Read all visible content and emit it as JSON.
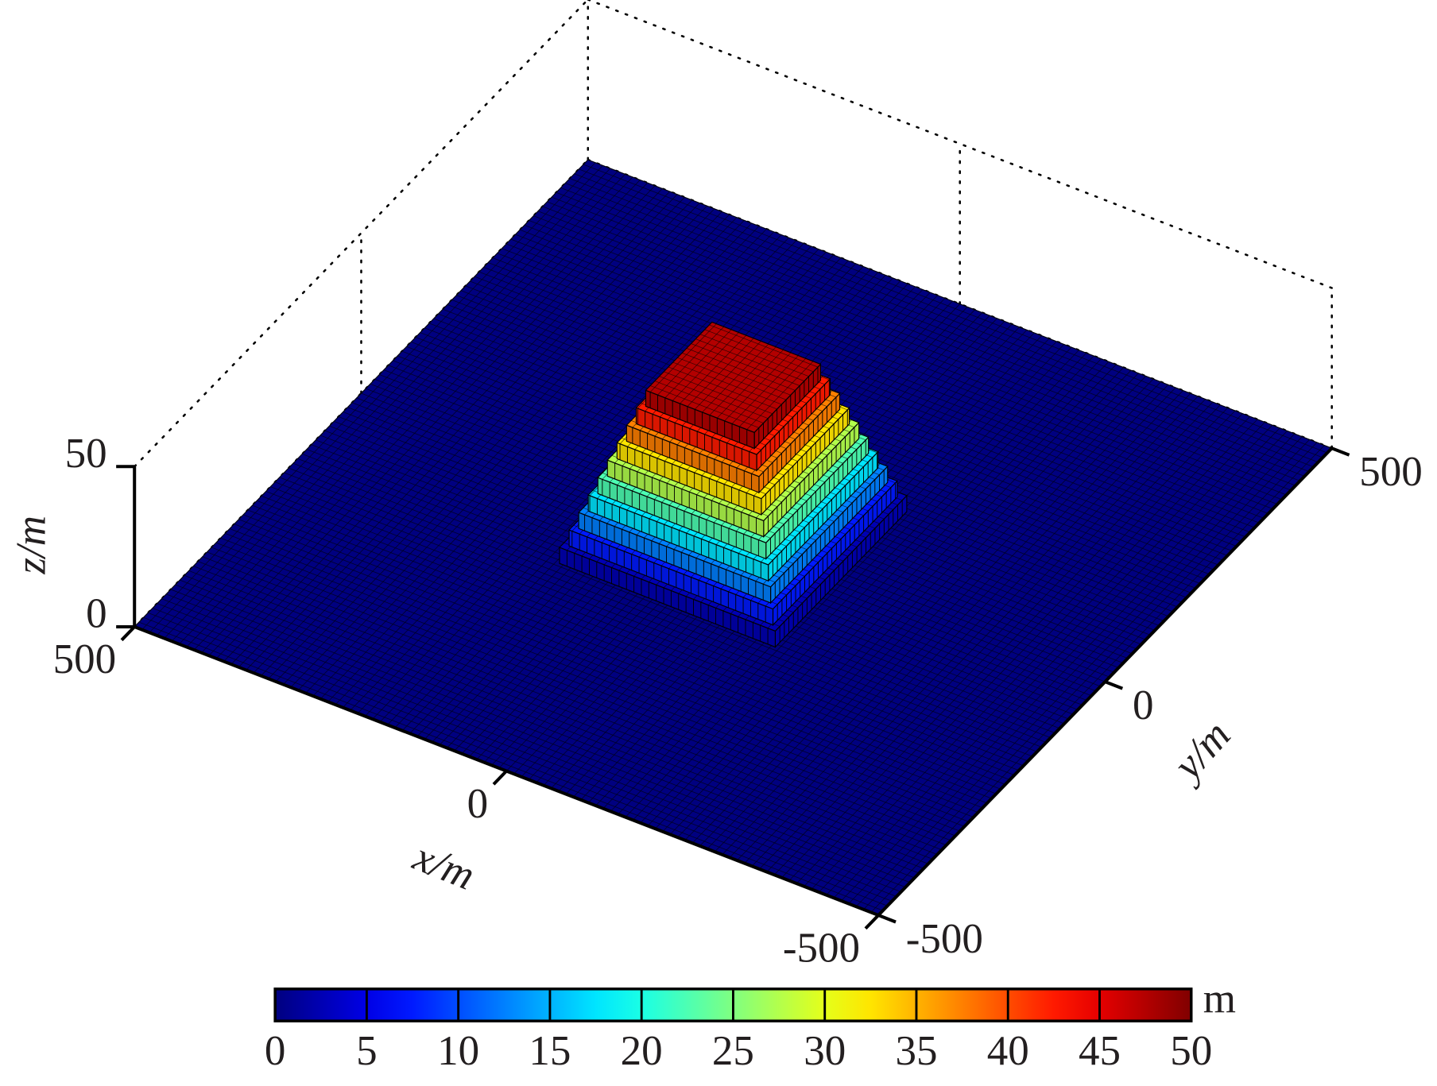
{
  "chart_data": {
    "type": "surface3d",
    "xlabel": "x/m",
    "ylabel": "y/m",
    "zlabel": "z/m",
    "xlim": [
      -500,
      500
    ],
    "ylim": [
      -500,
      500
    ],
    "zlim": [
      0,
      50
    ],
    "xticks": [
      -500,
      0,
      500
    ],
    "yticks": [
      -500,
      0,
      500
    ],
    "zticks": [
      0,
      50
    ],
    "grid": true,
    "colormap": "jet",
    "surface": {
      "levels": [
        {
          "z": 5,
          "half_width": 145
        },
        {
          "z": 10,
          "half_width": 137
        },
        {
          "z": 15,
          "half_width": 129
        },
        {
          "z": 20,
          "half_width": 121
        },
        {
          "z": 25,
          "half_width": 113
        },
        {
          "z": 30,
          "half_width": 105
        },
        {
          "z": 35,
          "half_width": 97
        },
        {
          "z": 40,
          "half_width": 89
        },
        {
          "z": 45,
          "half_width": 81
        },
        {
          "z": 50,
          "half_width": 73
        }
      ]
    },
    "colorbar": {
      "label": "m",
      "lim": [
        0,
        50
      ],
      "ticks": [
        0,
        5,
        10,
        15,
        20,
        25,
        30,
        35,
        40,
        45,
        50
      ]
    }
  }
}
